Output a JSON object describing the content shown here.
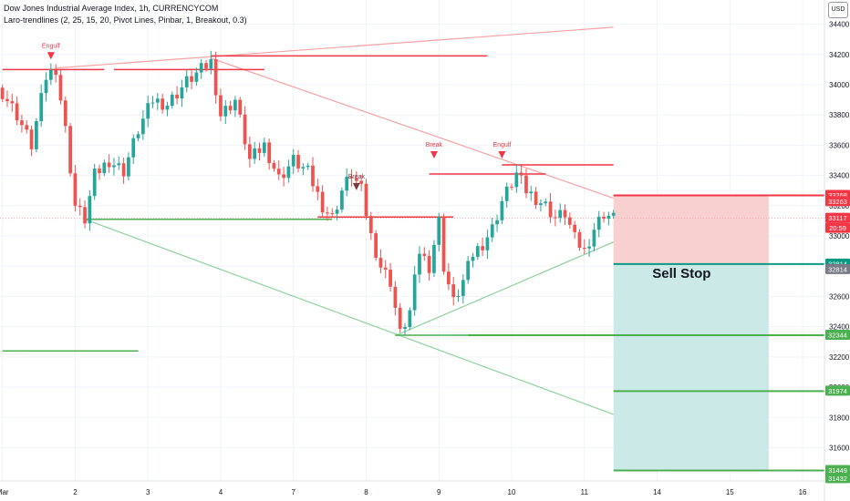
{
  "header": {
    "title": "Dow Jones Industrial Average Index, 1h, CURRENCYCOM",
    "indicator": "Laro-trendlines (2, 25, 15, 20, Pivot Lines, Pinbar, 1, Breakout, 0.3)",
    "currency": "USD"
  },
  "chart_data": {
    "type": "candlestick",
    "symbol": "Dow Jones Industrial Average Index",
    "interval": "1h",
    "ylim": [
      31380,
      34560
    ],
    "y_ticks": [
      34400,
      34200,
      34000,
      33800,
      33600,
      33400,
      33200,
      33000,
      32800,
      32600,
      32400,
      32200,
      32000,
      31800,
      31600
    ],
    "x_ticks": [
      "Mar",
      "2",
      "3",
      "4",
      "7",
      "8",
      "9",
      "10",
      "11",
      "14",
      "15",
      "16"
    ],
    "x_tick_index": [
      0,
      15,
      30,
      45,
      60,
      75,
      90,
      105,
      120,
      135,
      150,
      165
    ],
    "bars_total": 170,
    "anchors": [
      [
        0,
        33950
      ],
      [
        3,
        33800
      ],
      [
        6,
        33600
      ],
      [
        9,
        34050
      ],
      [
        11,
        34110
      ],
      [
        13,
        33700
      ],
      [
        15,
        33200
      ],
      [
        17,
        33110
      ],
      [
        19,
        33400
      ],
      [
        22,
        33500
      ],
      [
        25,
        33430
      ],
      [
        28,
        33700
      ],
      [
        31,
        33900
      ],
      [
        34,
        33870
      ],
      [
        38,
        34020
      ],
      [
        43,
        34150
      ],
      [
        45,
        33800
      ],
      [
        48,
        33900
      ],
      [
        51,
        33500
      ],
      [
        54,
        33600
      ],
      [
        57,
        33380
      ],
      [
        60,
        33500
      ],
      [
        63,
        33420
      ],
      [
        66,
        33200
      ],
      [
        68,
        33120
      ],
      [
        70,
        33300
      ],
      [
        72,
        33410
      ],
      [
        74,
        33300
      ],
      [
        76,
        33000
      ],
      [
        78,
        32800
      ],
      [
        80,
        32700
      ],
      [
        82,
        32350
      ],
      [
        84,
        32500
      ],
      [
        86,
        32900
      ],
      [
        88,
        32800
      ],
      [
        90,
        33100
      ],
      [
        91,
        32800
      ],
      [
        93,
        32560
      ],
      [
        95,
        32700
      ],
      [
        97,
        32880
      ],
      [
        99,
        32950
      ],
      [
        101,
        33050
      ],
      [
        103,
        33230
      ],
      [
        105,
        33350
      ],
      [
        106,
        33410
      ],
      [
        108,
        33300
      ],
      [
        110,
        33250
      ],
      [
        112,
        33200
      ],
      [
        114,
        33120
      ],
      [
        116,
        33150
      ],
      [
        118,
        32980
      ],
      [
        120,
        32900
      ],
      [
        122,
        33050
      ],
      [
        124,
        33150
      ],
      [
        126,
        33117
      ]
    ],
    "current_price": 33117,
    "countdown": "20:59",
    "lines": {
      "resistance_upper": {
        "from": [
          11,
          34110
        ],
        "to": [
          126,
          34380
        ]
      },
      "resistance_descending": {
        "from": [
          43,
          34175
        ],
        "to": [
          126,
          33250
        ]
      },
      "support_descending": {
        "from": [
          17,
          33110
        ],
        "to": [
          126,
          31820
        ]
      },
      "support_ascending": {
        "from": [
          81,
          32340
        ],
        "to": [
          126,
          32960
        ]
      },
      "h_red_1": {
        "from": [
          0,
          34100
        ],
        "to": [
          21,
          34100
        ]
      },
      "h_red_2": {
        "from": [
          23,
          34100
        ],
        "to": [
          54,
          34100
        ]
      },
      "h_red_3": {
        "from": [
          43,
          34190
        ],
        "to": [
          100,
          34190
        ]
      },
      "h_red_4": {
        "from": [
          65,
          33125
        ],
        "to": [
          93,
          33125
        ]
      },
      "h_red_5": {
        "from": [
          88,
          33410
        ],
        "to": [
          112,
          33410
        ]
      },
      "h_red_6": {
        "from": [
          103,
          33470
        ],
        "to": [
          126,
          33470
        ]
      },
      "h_green_1": {
        "from": [
          0,
          32240
        ],
        "to": [
          28,
          32240
        ]
      },
      "h_green_2": {
        "from": [
          17,
          33110
        ],
        "to": [
          68,
          33110
        ]
      },
      "h_green_3": {
        "from": [
          81,
          32344
        ],
        "to": [
          96,
          32344
        ]
      }
    },
    "markers": [
      {
        "text": "Engulf",
        "bar": 10,
        "price": 34215,
        "kind": "triangle-down",
        "color": "#f23645"
      },
      {
        "text": "Break",
        "bar": 89,
        "price": 33560,
        "kind": "triangle-down",
        "color": "#f23645"
      },
      {
        "text": "Engulf",
        "bar": 103,
        "price": 33560,
        "kind": "triangle-down",
        "color": "#f23645"
      },
      {
        "text": "Break",
        "bar": 73,
        "price": 33350,
        "kind": "triangle-down",
        "color": "#80393d"
      }
    ],
    "position": {
      "label": "Sell Stop",
      "entry": 32814,
      "stop": 33268,
      "target": 31449,
      "start_bar": 126,
      "end_bar": 158
    },
    "levels": [
      {
        "price": 33268,
        "color": "#f23645",
        "label": "33268"
      },
      {
        "price": 33263,
        "color": "#f23645",
        "label": "33263"
      },
      {
        "price": 32814,
        "color": "#089981",
        "label": "32814"
      },
      {
        "price": 32814,
        "color": "#787b86",
        "label": "32814"
      },
      {
        "price": 32344,
        "color": "#4caf50",
        "label": "32344"
      },
      {
        "price": 31974,
        "color": "#4caf50",
        "label": "31974"
      },
      {
        "price": 31449,
        "color": "#4caf50",
        "label": "31449"
      },
      {
        "price": 31432,
        "color": "#4caf50",
        "label": "31432"
      }
    ],
    "colors": {
      "up": "#26a69a",
      "down": "#ef5350",
      "red_line": "#f23645",
      "red_trend": "#f7a2a5",
      "green_line": "#4caf50",
      "green_trend": "#8fd19e",
      "loss_zone": "#f9d0d0",
      "profit_zone": "#cbe9e6"
    }
  }
}
